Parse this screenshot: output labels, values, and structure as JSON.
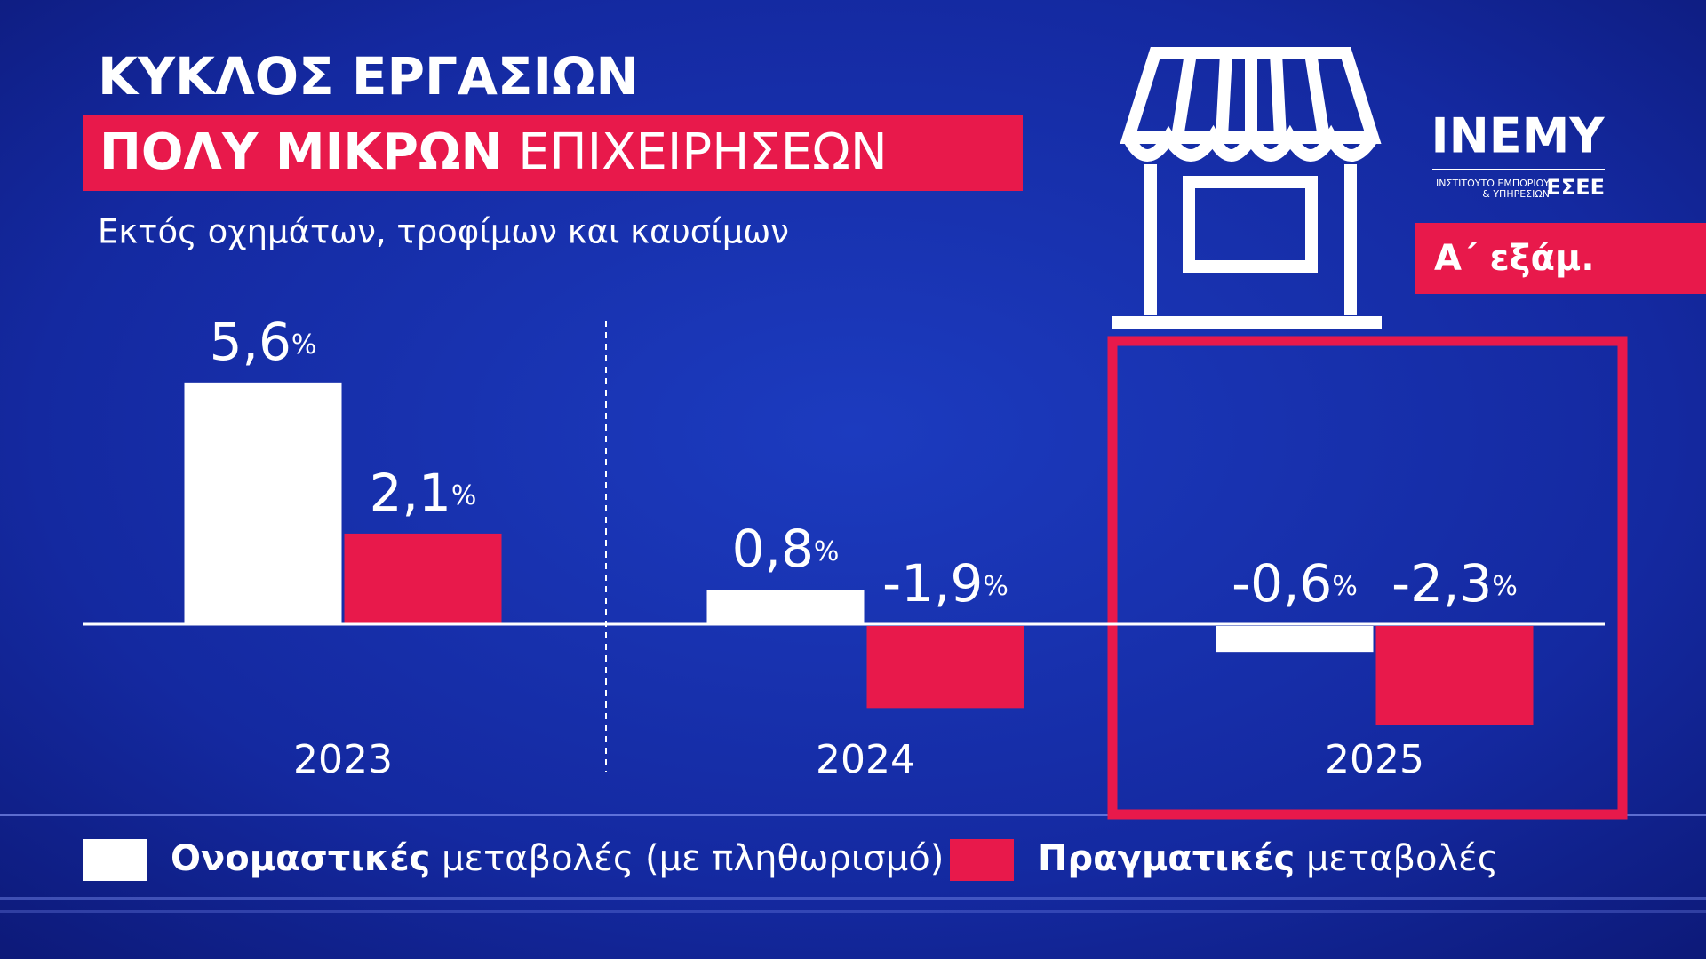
{
  "chart_data": {
    "type": "bar",
    "title": "ΚΥΚΛΟΣ ΕΡΓΑΣΙΩΝ",
    "title_highlight": [
      "ΠΟΛΥ ΜΙΚΡΩΝ",
      "ΕΠΙΧΕΙΡΗΣΕΩΝ"
    ],
    "subtitle": "Εκτός οχημάτων, τροφίμων και καυσίμων",
    "period": "Α΄ εξάμ.",
    "logo": {
      "name": "ΙΝΕΜΥ",
      "line1": "ΙΝΣΤΙΤΟΥΤΟ ΕΜΠΟΡΙΟΥ",
      "line2": "& ΥΠΗΡΕΣΙΩΝ",
      "org": "ΕΣΕΕ"
    },
    "categories": [
      "2023",
      "2024",
      "2025"
    ],
    "series": [
      {
        "name": "Ονομαστικές μεταβολές (με πληθωρισμό)",
        "color": "#ffffff",
        "values": [
          5.6,
          0.8,
          -0.6
        ],
        "value_labels": [
          "5,6%",
          "0,8%",
          "-0,6%"
        ]
      },
      {
        "name": "Πραγματικές μεταβολές",
        "color": "#e8194b",
        "values": [
          2.1,
          -1.9,
          -2.3
        ],
        "value_labels": [
          "2,1%",
          "-1,9%",
          "-2,3%"
        ]
      }
    ]
  }
}
